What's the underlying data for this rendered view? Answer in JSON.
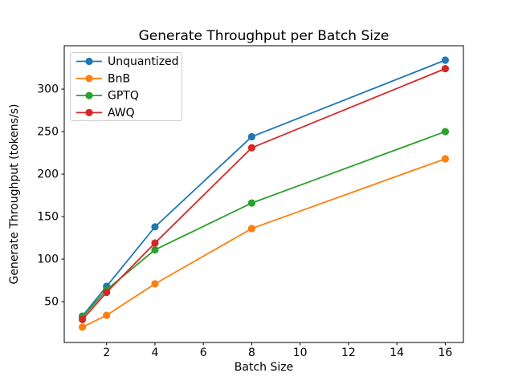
{
  "window": {
    "background": "#ffffff"
  },
  "chart_data": {
    "type": "line",
    "title": "Generate Throughput per Batch Size",
    "xlabel": "Batch Size",
    "ylabel": "Generate Throughput (tokens/s)",
    "x": [
      1,
      2,
      4,
      8,
      16
    ],
    "series": [
      {
        "name": "Unquantized",
        "color": "#1f77b4",
        "values": [
          33,
          68,
          138,
          244,
          334
        ]
      },
      {
        "name": "BnB",
        "color": "#ff7f0e",
        "values": [
          20,
          34,
          71,
          136,
          218
        ]
      },
      {
        "name": "GPTQ",
        "color": "#2ca02c",
        "values": [
          32,
          64,
          111,
          166,
          250
        ]
      },
      {
        "name": "AWQ",
        "color": "#d62728",
        "values": [
          29,
          61,
          119,
          231,
          324
        ]
      }
    ],
    "xticks": [
      2,
      4,
      6,
      8,
      10,
      12,
      14,
      16
    ],
    "yticks": [
      50,
      100,
      150,
      200,
      250,
      300
    ],
    "xlim": [
      0.25,
      16.75
    ],
    "ylim": [
      2,
      351
    ],
    "grid": false,
    "legend_position": "upper left",
    "marker": "circle",
    "axis_color": "#000000",
    "legend_border_color": "#cccccc"
  }
}
